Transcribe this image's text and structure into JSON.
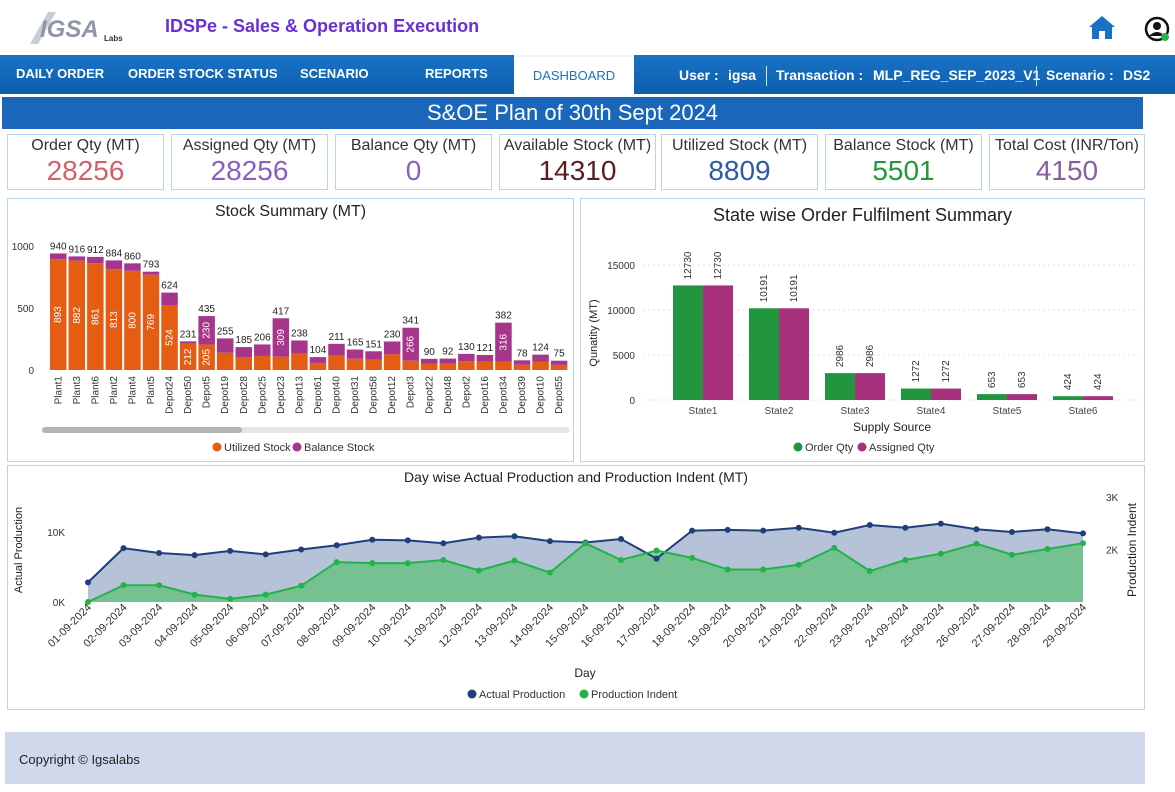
{
  "header": {
    "logo_text": "IGSA",
    "logo_sub": "Labs",
    "title": "IDSPe - Sales & Operation Execution"
  },
  "nav": {
    "items": [
      "DAILY ORDER",
      "ORDER STOCK STATUS",
      "SCENARIO",
      "REPORTS",
      "DASHBOARD"
    ],
    "active": "DASHBOARD",
    "user_label": "User :",
    "user_value": "igsa",
    "transaction_label": "Transaction :",
    "transaction_value": "MLP_REG_SEP_2023_V1",
    "scenario_label": "Scenario :",
    "scenario_value": "DS2"
  },
  "banner": "S&OE Plan of 30th Sept 2024",
  "kpis": [
    {
      "label": "Order Qty (MT)",
      "value": "28256",
      "color": "#d4606b"
    },
    {
      "label": "Assigned Qty (MT)",
      "value": "28256",
      "color": "#8a5fc4"
    },
    {
      "label": "Balance Qty (MT)",
      "value": "0",
      "color": "#8a5fc4"
    },
    {
      "label": "Available Stock (MT)",
      "value": "14310",
      "color": "#5a1e1e"
    },
    {
      "label": "Utilized Stock (MT)",
      "value": "8809",
      "color": "#2a5aa8"
    },
    {
      "label": "Balance Stock (MT)",
      "value": "5501",
      "color": "#1f9a3a"
    },
    {
      "label": "Total Cost (INR/Ton)",
      "value": "4150",
      "color": "#8a5fa0"
    }
  ],
  "colors": {
    "utilized": "#e45d13",
    "balance": "#a7358c",
    "order": "#22963f",
    "assigned": "#a7307c",
    "actual": "#1f3e7c",
    "indent": "#21b34a"
  },
  "chart_data": [
    {
      "type": "bar",
      "stacked": true,
      "title": "Stock Summary (MT)",
      "categories": [
        "Plant1",
        "Plant3",
        "Plant6",
        "Plant2",
        "Plant4",
        "Plant5",
        "Depot24",
        "Depot50",
        "Depot5",
        "Depot19",
        "Depot28",
        "Depot25",
        "Depot23",
        "Depot13",
        "Depot61",
        "Depot40",
        "Depot31",
        "Depot58",
        "Depot12",
        "Depot3",
        "Depot22",
        "Depot48",
        "Depot2",
        "Depot16",
        "Depot34",
        "Depot39",
        "Depot10",
        "Depot55"
      ],
      "totals": [
        940,
        916,
        912,
        884,
        860,
        793,
        624,
        231,
        435,
        255,
        185,
        206,
        417,
        238,
        104,
        211,
        165,
        151,
        230,
        341,
        90,
        92,
        130,
        121,
        382,
        78,
        124,
        75
      ],
      "series": [
        {
          "name": "Utilized Stock",
          "labels": [
            "893",
            "882",
            "861",
            "813",
            "800",
            "769",
            "524",
            "212",
            "205",
            "",
            "",
            "",
            "",
            "",
            "",
            "",
            "",
            "",
            "",
            "",
            "",
            "",
            "",
            "",
            "",
            "",
            "",
            ""
          ]
        },
        {
          "name": "Balance Stock",
          "labels": [
            "",
            "",
            "",
            "",
            "",
            "",
            "",
            "",
            "230",
            "",
            "",
            "",
            "309",
            "",
            "",
            "",
            "",
            "",
            "",
            "266",
            "",
            "",
            "",
            "",
            "316",
            "",
            "",
            ""
          ]
        }
      ],
      "ytick_labels": [
        "0",
        "500",
        "1000"
      ],
      "ylim": [
        0,
        1000
      ],
      "legend": [
        "Utilized Stock",
        "Balance Stock"
      ]
    },
    {
      "type": "bar",
      "title": "State wise Order Fulfilment Summary",
      "xlabel": "Supply Source",
      "ylabel": "Qunatity (MT)",
      "categories": [
        "State1",
        "State2",
        "State3",
        "State4",
        "State5",
        "State6"
      ],
      "series": [
        {
          "name": "Order Qty",
          "values": [
            12730,
            10191,
            2986,
            1272,
            653,
            424
          ]
        },
        {
          "name": "Assigned Qty",
          "values": [
            12730,
            10191,
            2986,
            1272,
            653,
            424
          ]
        }
      ],
      "value_labels": [
        "12730",
        "10191",
        "2986",
        "1272",
        "653",
        "424"
      ],
      "ytick_labels": [
        "0",
        "5000",
        "10000",
        "15000"
      ],
      "ylim": [
        0,
        15000
      ],
      "legend": [
        "Order Qty",
        "Assigned Qty"
      ]
    },
    {
      "type": "area",
      "title": "Day wise Actual Production and Production Indent (MT)",
      "xlabel": "Day",
      "ylabel": "Actual Production",
      "y2label": "Production Indent",
      "categories": [
        "01-09-2024",
        "02-09-2024",
        "03-09-2024",
        "04-09-2024",
        "05-09-2024",
        "06-09-2024",
        "07-09-2024",
        "08-09-2024",
        "09-09-2024",
        "10-09-2024",
        "11-09-2024",
        "12-09-2024",
        "13-09-2024",
        "14-09-2024",
        "15-09-2024",
        "16-09-2024",
        "17-09-2024",
        "18-09-2024",
        "19-09-2024",
        "20-09-2024",
        "21-09-2024",
        "22-09-2024",
        "23-09-2024",
        "24-09-2024",
        "25-09-2024",
        "26-09-2024",
        "27-09-2024",
        "28-09-2024",
        "29-09-2024"
      ],
      "series": [
        {
          "name": "Actual Production",
          "axis": "left",
          "values": [
            2800,
            7700,
            7000,
            6700,
            7300,
            6800,
            7500,
            8100,
            8900,
            8800,
            8400,
            9200,
            9400,
            8700,
            8500,
            9000,
            6200,
            10200,
            10300,
            10200,
            10600,
            9900,
            11000,
            10600,
            11200,
            10400,
            10000,
            10400,
            9800
          ]
        },
        {
          "name": "Production Indent",
          "axis": "right",
          "values": [
            1000,
            1320,
            1320,
            1140,
            1060,
            1140,
            1310,
            1760,
            1740,
            1740,
            1800,
            1600,
            1790,
            1560,
            2120,
            1800,
            1980,
            1840,
            1620,
            1620,
            1710,
            2030,
            1590,
            1800,
            1920,
            2110,
            1900,
            2010,
            2120
          ]
        }
      ],
      "ytick_labels": [
        "0K",
        "10K"
      ],
      "ylim": [
        0,
        15000
      ],
      "y2tick_labels": [
        "2K",
        "3K"
      ],
      "y2lim": [
        1000,
        3000
      ],
      "legend": [
        "Actual Production",
        "Production Indent"
      ]
    }
  ],
  "footer": {
    "copyright": "Copyright © Igsalabs"
  }
}
